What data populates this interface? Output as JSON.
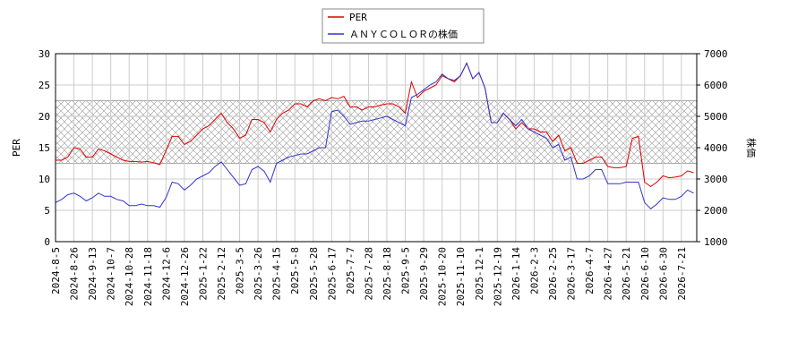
{
  "chart_data": {
    "type": "line",
    "x": [
      "2024-8-5",
      null,
      null,
      "2024-8-26",
      null,
      null,
      "2024-9-13",
      null,
      null,
      "2024-10-7",
      null,
      null,
      "2024-10-28",
      null,
      null,
      "2024-11-18",
      null,
      null,
      "2024-12-6",
      null,
      null,
      "2024-12-26",
      null,
      null,
      "2025-1-22",
      null,
      null,
      "2025-2-12",
      null,
      null,
      "2025-3-5",
      null,
      null,
      "2025-3-26",
      null,
      null,
      "2025-4-15",
      null,
      null,
      "2025-5-8",
      null,
      null,
      "2025-5-28",
      null,
      null,
      "2025-6-17",
      null,
      null,
      "2025-7-7",
      null,
      null,
      "2025-7-28",
      null,
      null,
      "2025-8-18",
      null,
      null,
      "2025-9-5",
      null,
      null,
      "2025-9-29",
      null,
      null,
      "2025-10-20",
      null,
      null,
      "2025-11-10",
      null,
      null,
      "2025-12-1",
      null,
      null,
      "2025-12-19",
      null,
      null,
      "2026-1-14",
      null,
      null,
      "2026-2-3",
      null,
      null,
      "2026-2-25",
      null,
      null,
      "2026-3-17",
      null,
      null,
      "2026-4-7",
      null,
      null,
      "2026-4-27",
      null,
      null,
      "2026-5-21",
      null,
      null,
      "2026-6-10",
      null,
      null,
      "2026-6-30",
      null,
      null,
      "2026-7-21",
      null,
      null
    ],
    "series": [
      {
        "name": "PER",
        "color": "#dd0000",
        "axis": "y",
        "values": [
          13,
          13,
          13.5,
          15,
          14.8,
          13.5,
          13.5,
          14.8,
          14.5,
          14,
          13.5,
          13,
          12.8,
          12.8,
          12.7,
          12.8,
          12.6,
          12.3,
          14.5,
          16.8,
          16.8,
          15.5,
          16,
          17,
          18,
          18.5,
          19.5,
          20.5,
          19,
          18,
          16.5,
          17,
          19.5,
          19.5,
          19,
          17.5,
          19.5,
          20.5,
          21,
          22,
          22,
          21.5,
          22.5,
          22.8,
          22.5,
          23,
          22.8,
          23.2,
          21.5,
          21.5,
          21,
          21.5,
          21.5,
          21.8,
          22,
          22,
          21.5,
          20.5,
          25.5,
          23,
          24,
          24.5,
          25,
          26.5,
          26,
          25.5,
          26.5,
          28.5,
          26,
          27,
          24.5,
          19,
          19,
          20.5,
          19.5,
          18,
          19,
          18,
          18,
          17.5,
          17.5,
          16,
          17,
          14.5,
          15,
          12.5,
          12.5,
          13,
          13.5,
          13.5,
          12,
          11.8,
          11.8,
          12,
          16.5,
          16.8,
          9.5,
          8.8,
          9.5,
          10.5,
          10.2,
          10.3,
          10.5,
          11.3,
          11
        ]
      },
      {
        "name": "ＡＮＹＣＯＬＯＲの株価",
        "color": "#3333cc",
        "axis": "y2",
        "values": [
          2250,
          2350,
          2500,
          2550,
          2450,
          2300,
          2400,
          2550,
          2450,
          2450,
          2350,
          2300,
          2150,
          2150,
          2200,
          2150,
          2150,
          2100,
          2400,
          2900,
          2850,
          2650,
          2800,
          3000,
          3100,
          3200,
          3400,
          3550,
          3300,
          3050,
          2800,
          2850,
          3300,
          3400,
          3250,
          2900,
          3500,
          3600,
          3700,
          3750,
          3800,
          3800,
          3900,
          4000,
          4000,
          5150,
          5200,
          5000,
          4750,
          4800,
          4850,
          4850,
          4900,
          4950,
          5000,
          4900,
          4800,
          4700,
          5600,
          5700,
          5850,
          6000,
          6100,
          6350,
          6200,
          6150,
          6300,
          6700,
          6200,
          6400,
          5900,
          4800,
          4800,
          5100,
          4900,
          4700,
          4900,
          4600,
          4500,
          4400,
          4300,
          4000,
          4100,
          3600,
          3700,
          3000,
          3000,
          3100,
          3300,
          3300,
          2850,
          2850,
          2850,
          2900,
          2900,
          2900,
          2250,
          2050,
          2200,
          2400,
          2350,
          2350,
          2450,
          2650,
          2550
        ]
      }
    ],
    "ylabel": "PER",
    "y2label": "株価",
    "ylim": [
      0,
      30
    ],
    "yticks": [
      0,
      5,
      10,
      15,
      20,
      25,
      30
    ],
    "y2lim": [
      1000,
      7000
    ],
    "y2ticks": [
      1000,
      2000,
      3000,
      4000,
      5000,
      6000,
      7000
    ],
    "band": [
      12.5,
      22.5
    ],
    "grid": true,
    "legend": "top"
  }
}
